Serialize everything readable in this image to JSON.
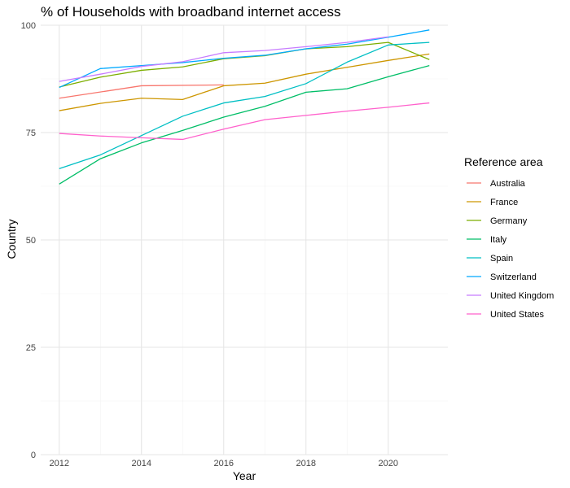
{
  "chart_data": {
    "type": "line",
    "title": "% of Households with broadband internet access",
    "xlabel": "Year",
    "ylabel": "Country",
    "xlim": [
      2011.55,
      2021.45
    ],
    "ylim": [
      0,
      100
    ],
    "x_ticks": [
      2012,
      2014,
      2016,
      2018,
      2020
    ],
    "y_ticks": [
      0,
      25,
      50,
      75,
      100
    ],
    "grid": true,
    "legend": {
      "title": "Reference area",
      "position": "right"
    },
    "series": [
      {
        "name": "Australia",
        "color": "#F8766D",
        "points": [
          [
            2012,
            83.0
          ],
          [
            2014,
            85.9
          ],
          [
            2016,
            86.1
          ]
        ]
      },
      {
        "name": "France",
        "color": "#CD9600",
        "points": [
          [
            2012,
            80.1
          ],
          [
            2013,
            81.8
          ],
          [
            2014,
            83.0
          ],
          [
            2015,
            82.7
          ],
          [
            2016,
            85.9
          ],
          [
            2017,
            86.5
          ],
          [
            2018,
            88.6
          ],
          [
            2019,
            90.2
          ],
          [
            2020,
            91.8
          ],
          [
            2021,
            93.3
          ]
        ]
      },
      {
        "name": "Germany",
        "color": "#7CAE00",
        "points": [
          [
            2012,
            85.6
          ],
          [
            2013,
            87.9
          ],
          [
            2014,
            89.5
          ],
          [
            2015,
            90.3
          ],
          [
            2016,
            92.2
          ],
          [
            2017,
            92.9
          ],
          [
            2018,
            94.5
          ],
          [
            2019,
            95.0
          ],
          [
            2020,
            96.0
          ],
          [
            2021,
            92.0
          ]
        ]
      },
      {
        "name": "Italy",
        "color": "#00BE67",
        "points": [
          [
            2012,
            63.0
          ],
          [
            2013,
            68.9
          ],
          [
            2014,
            72.6
          ],
          [
            2015,
            75.5
          ],
          [
            2016,
            78.6
          ],
          [
            2017,
            81.1
          ],
          [
            2018,
            84.4
          ],
          [
            2019,
            85.2
          ],
          [
            2020,
            88.0
          ],
          [
            2021,
            90.6
          ]
        ]
      },
      {
        "name": "Spain",
        "color": "#00BFC4",
        "points": [
          [
            2012,
            66.6
          ],
          [
            2013,
            69.8
          ],
          [
            2014,
            74.3
          ],
          [
            2015,
            78.8
          ],
          [
            2016,
            81.9
          ],
          [
            2017,
            83.4
          ],
          [
            2018,
            86.4
          ],
          [
            2019,
            91.4
          ],
          [
            2020,
            95.4
          ],
          [
            2021,
            96.0
          ]
        ]
      },
      {
        "name": "Switzerland",
        "color": "#00A9FF",
        "points": [
          [
            2012,
            85.5
          ],
          [
            2013,
            89.9
          ],
          [
            2014,
            90.6
          ],
          [
            2015,
            91.3
          ],
          [
            2016,
            92.3
          ],
          [
            2017,
            93.0
          ],
          [
            2018,
            94.5
          ],
          [
            2019,
            95.6
          ],
          [
            2020,
            97.2
          ],
          [
            2021,
            98.9
          ]
        ]
      },
      {
        "name": "United Kingdom",
        "color": "#C77CFF",
        "points": [
          [
            2012,
            86.9
          ],
          [
            2013,
            88.6
          ],
          [
            2014,
            90.4
          ],
          [
            2015,
            91.5
          ],
          [
            2016,
            93.6
          ],
          [
            2017,
            94.1
          ],
          [
            2018,
            95.0
          ],
          [
            2019,
            96.0
          ],
          [
            2020,
            97.3
          ]
        ]
      },
      {
        "name": "United States",
        "color": "#FF61CC",
        "points": [
          [
            2012,
            74.8
          ],
          [
            2013,
            74.2
          ],
          [
            2014,
            73.8
          ],
          [
            2015,
            73.4
          ],
          [
            2016,
            75.8
          ],
          [
            2017,
            78.0
          ],
          [
            2018,
            79.0
          ],
          [
            2019,
            80.0
          ],
          [
            2020,
            80.9
          ],
          [
            2021,
            81.9
          ]
        ]
      }
    ]
  }
}
